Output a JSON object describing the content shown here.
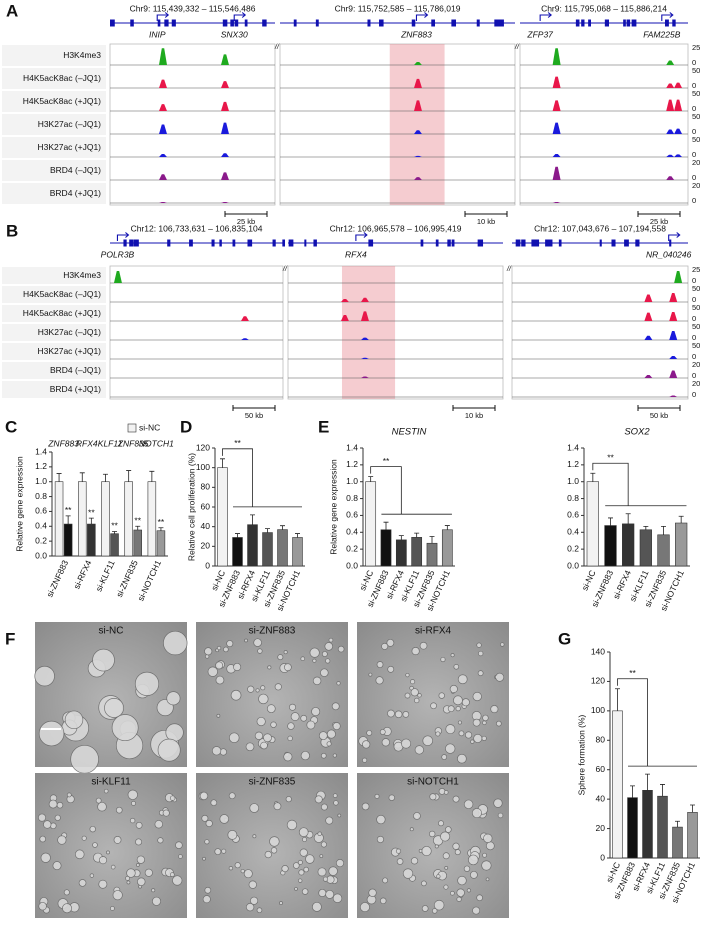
{
  "genome_panels": [
    {
      "label": "A",
      "break_mark": "//",
      "regions": [
        {
          "coord": "Chr9: 115,439,332 – 115,546,486",
          "start": 115439332,
          "end": 115546486,
          "genes": [
            {
              "name": "INIP",
              "pos": 115470000
            },
            {
              "name": "SNX30",
              "pos": 115520000
            }
          ],
          "scale_bar": "25 kb"
        },
        {
          "coord": "Chr9: 115,752,585 – 115,786,019",
          "start": 115752585,
          "end": 115786019,
          "genes": [
            {
              "name": "ZNF883",
              "pos": 115772000
            }
          ],
          "scale_bar": "10 kb"
        },
        {
          "coord": "Chr9: 115,795,068 – 115,886,214",
          "start": 115795068,
          "end": 115886214,
          "genes": [
            {
              "name": "ZFP37",
              "pos": 115806000
            },
            {
              "name": "FAM225B",
              "pos": 115872000
            }
          ],
          "scale_bar": "25 kb"
        }
      ],
      "highlight": {
        "region": 1,
        "start": 115768200,
        "end": 115776000
      },
      "tracks": [
        {
          "name": "H3K4me3",
          "scale": [
            25,
            0
          ],
          "color": "#1faa1f",
          "peaks": [
            [
              0,
              115473752,
              22
            ],
            [
              0,
              115514012,
              14
            ],
            [
              1,
              115772215,
              4
            ],
            [
              2,
              115814928,
              22
            ],
            [
              2,
              115876553,
              6
            ]
          ]
        },
        {
          "name": "H4K5acK8ac (–JQ1)",
          "scale": [
            50,
            0
          ],
          "color": "#e8174a",
          "peaks": [
            [
              0,
              115473752,
              22
            ],
            [
              0,
              115514012,
              18
            ],
            [
              1,
              115772215,
              24
            ],
            [
              2,
              115814928,
              30
            ],
            [
              2,
              115876553,
              12
            ],
            [
              2,
              115880838,
              14
            ]
          ]
        },
        {
          "name": "H4K5acK8ac (+JQ1)",
          "scale": [
            50,
            0
          ],
          "color": "#e8174a",
          "peaks": [
            [
              0,
              115473752,
              18
            ],
            [
              0,
              115514012,
              24
            ],
            [
              1,
              115772215,
              28
            ],
            [
              2,
              115814928,
              28
            ],
            [
              2,
              115876553,
              30
            ],
            [
              2,
              115880838,
              30
            ]
          ]
        },
        {
          "name": "H3K27ac (–JQ1)",
          "scale": [
            50,
            0
          ],
          "color": "#1a1adc",
          "peaks": [
            [
              0,
              115473752,
              25
            ],
            [
              0,
              115514012,
              30
            ],
            [
              1,
              115772215,
              10
            ],
            [
              2,
              115814928,
              30
            ],
            [
              2,
              115876553,
              12
            ],
            [
              2,
              115880838,
              14
            ]
          ]
        },
        {
          "name": "H3K27ac (+JQ1)",
          "scale": [
            50,
            0
          ],
          "color": "#1a1adc",
          "peaks": [
            [
              0,
              115473752,
              8
            ],
            [
              0,
              115514012,
              10
            ],
            [
              1,
              115772215,
              3
            ],
            [
              2,
              115814928,
              8
            ],
            [
              2,
              115876553,
              6
            ],
            [
              2,
              115880838,
              7
            ]
          ]
        },
        {
          "name": "BRD4 (–JQ1)",
          "scale": [
            20,
            0
          ],
          "color": "#8b1a8b",
          "peaks": [
            [
              0,
              115473752,
              6
            ],
            [
              0,
              115514012,
              8
            ],
            [
              1,
              115772215,
              3
            ],
            [
              2,
              115814928,
              14
            ],
            [
              2,
              115876553,
              4
            ]
          ]
        },
        {
          "name": "BRD4 (+JQ1)",
          "scale": [
            20,
            0
          ],
          "color": "#8b1a8b",
          "peaks": [
            [
              0,
              115473752,
              1
            ],
            [
              0,
              115514012,
              1
            ],
            [
              2,
              115814928,
              1
            ]
          ]
        }
      ]
    },
    {
      "label": "B",
      "break_mark": "//",
      "regions": [
        {
          "coord": "Chr12: 106,733,631 – 106,835,104",
          "start": 106733631,
          "end": 106835104,
          "genes": [
            {
              "name": "POLR3B",
              "pos": 106738000
            }
          ],
          "scale_bar": "50 kb"
        },
        {
          "coord": "Chr12: 106,965,578 – 106,995,419",
          "start": 106965578,
          "end": 106995419,
          "genes": [
            {
              "name": "RFX4",
              "pos": 106975000
            }
          ],
          "scale_bar": "10 kb"
        },
        {
          "coord": "Chr12: 107,043,676 – 107,194,558",
          "start": 107043676,
          "end": 107194558,
          "genes": [
            {
              "name": "NR_040246",
              "pos": 107178000
            }
          ],
          "scale_bar": "50 kb"
        }
      ],
      "highlight": {
        "region": 1,
        "start": 106973070,
        "end": 106980440
      },
      "tracks": [
        {
          "name": "H3K4me3",
          "scale": [
            25,
            0
          ],
          "color": "#1faa1f",
          "peaks": [
            [
              0,
              106738300,
              20
            ],
            [
              2,
              107186100,
              20
            ]
          ]
        },
        {
          "name": "H4K5acK8ac (–JQ1)",
          "scale": [
            50,
            0
          ],
          "color": "#e8174a",
          "peaks": [
            [
              1,
              106973480,
              10
            ],
            [
              1,
              106976260,
              14
            ],
            [
              2,
              107160600,
              25
            ],
            [
              2,
              107181900,
              30
            ]
          ]
        },
        {
          "name": "H4K5acK8ac (+JQ1)",
          "scale": [
            50,
            0
          ],
          "color": "#e8174a",
          "peaks": [
            [
              0,
              106812800,
              16
            ],
            [
              1,
              106973480,
              20
            ],
            [
              1,
              106976260,
              32
            ],
            [
              2,
              107160600,
              28
            ],
            [
              2,
              107181900,
              30
            ]
          ]
        },
        {
          "name": "H3K27ac (–JQ1)",
          "scale": [
            50,
            0
          ],
          "color": "#1a1adc",
          "peaks": [
            [
              0,
              106812800,
              6
            ],
            [
              1,
              106976260,
              8
            ],
            [
              2,
              107160600,
              14
            ],
            [
              2,
              107181900,
              30
            ]
          ]
        },
        {
          "name": "H3K27ac (+JQ1)",
          "scale": [
            50,
            0
          ],
          "color": "#1a1adc",
          "peaks": [
            [
              1,
              106976260,
              4
            ],
            [
              2,
              107181900,
              10
            ]
          ]
        },
        {
          "name": "BRD4 (–JQ1)",
          "scale": [
            20,
            0
          ],
          "color": "#8b1a8b",
          "peaks": [
            [
              1,
              106976260,
              2
            ],
            [
              2,
              107160600,
              4
            ],
            [
              2,
              107181900,
              10
            ]
          ]
        },
        {
          "name": "BRD4 (+JQ1)",
          "scale": [
            20,
            0
          ],
          "color": "#8b1a8b",
          "peaks": [
            [
              2,
              107181900,
              2
            ]
          ]
        }
      ]
    }
  ],
  "chart_data": [
    {
      "type": "bar",
      "panel": "C",
      "y_label": "Relative gene expression",
      "categories": [
        "si-ZNF883",
        "si-RFX4",
        "si-KLF11",
        "si-ZNF835",
        "si-NOTCH1"
      ],
      "group_labels": [
        "ZNF883",
        "RFX4",
        "KLF11",
        "ZNF835",
        "NOTCH1"
      ],
      "series": [
        {
          "name": "si-NC",
          "color": "#f2f2f2",
          "values": [
            1.0,
            1.0,
            1.0,
            1.0,
            1.0
          ],
          "errors": [
            0.11,
            0.12,
            0.1,
            0.15,
            0.14
          ]
        },
        {
          "colors": [
            "#111111",
            "#333333",
            "#555555",
            "#777777",
            "#999999"
          ],
          "values": [
            0.43,
            0.43,
            0.3,
            0.35,
            0.34
          ],
          "errors": [
            0.11,
            0.08,
            0.03,
            0.05,
            0.04
          ],
          "annotations": [
            "**",
            "**",
            "**",
            "**",
            "**"
          ]
        }
      ],
      "ylim": [
        0,
        1.4
      ],
      "yticks": [
        {
          "value": 0,
          "label": "0.0"
        },
        0.2,
        0.4,
        0.6,
        0.8,
        {
          "value": 1,
          "label": "1.0"
        },
        1.2,
        1.4
      ]
    },
    {
      "type": "bar",
      "panel": "D",
      "y_label": "Relative cell proliferation (%)",
      "categories": [
        "si-NC",
        "si-ZNF883",
        "si-RFX4",
        "si-KLF11",
        "si-ZNF835",
        "si-NOTCH1"
      ],
      "values": [
        100,
        29,
        42,
        34,
        37,
        29
      ],
      "errors": [
        9,
        4,
        10,
        4,
        4,
        4
      ],
      "colors": [
        "#f2f2f2",
        "#111111",
        "#333333",
        "#555555",
        "#777777",
        "#999999"
      ],
      "annotation": "**",
      "ylim": [
        0,
        120
      ],
      "yticks": [
        0,
        20,
        40,
        60,
        80,
        100,
        120
      ]
    },
    {
      "type": "bar",
      "panel": "E",
      "title": "NESTIN",
      "y_label": "Relative gene expression",
      "categories": [
        "si-NC",
        "si-ZNF883",
        "si-RFX4",
        "si-KLF11",
        "si-ZNF835",
        "si-NOTCH1"
      ],
      "values": [
        1.0,
        0.43,
        0.31,
        0.34,
        0.27,
        0.43
      ],
      "errors": [
        0.06,
        0.09,
        0.05,
        0.05,
        0.08,
        0.05
      ],
      "colors": [
        "#f2f2f2",
        "#111111",
        "#333333",
        "#555555",
        "#777777",
        "#999999"
      ],
      "annotation": "**",
      "ylim": [
        0,
        1.4
      ],
      "yticks": [
        {
          "value": 0,
          "label": "0.0"
        },
        0.2,
        0.4,
        0.6,
        0.8,
        {
          "value": 1,
          "label": "1.0"
        },
        1.2,
        1.4
      ]
    },
    {
      "type": "bar",
      "title": "SOX2",
      "categories": [
        "si-NC",
        "si-ZNF883",
        "si-RFX4",
        "si-KLF11",
        "si-ZNF835",
        "si-NOTCH1"
      ],
      "values": [
        1.0,
        0.48,
        0.5,
        0.43,
        0.37,
        0.51
      ],
      "errors": [
        0.1,
        0.09,
        0.12,
        0.04,
        0.1,
        0.08
      ],
      "colors": [
        "#f2f2f2",
        "#111111",
        "#333333",
        "#555555",
        "#777777",
        "#999999"
      ],
      "annotation": "**",
      "ylim": [
        0,
        1.4
      ],
      "yticks": [
        {
          "value": 0,
          "label": "0.0"
        },
        0.2,
        0.4,
        0.6,
        0.8,
        {
          "value": 1,
          "label": "1.0"
        },
        1.2,
        1.4
      ]
    },
    {
      "type": "bar",
      "panel": "G",
      "y_label": "Sphere formation (%)",
      "categories": [
        "si-NC",
        "si-ZNF883",
        "si-RFX4",
        "si-KLF11",
        "si-ZNF835",
        "si-NOTCH1"
      ],
      "values": [
        100,
        41,
        46,
        42,
        21,
        31
      ],
      "errors": [
        15,
        8,
        11,
        8,
        4,
        5
      ],
      "colors": [
        "#f2f2f2",
        "#111111",
        "#333333",
        "#555555",
        "#777777",
        "#999999"
      ],
      "annotation": "**",
      "ylim": [
        0,
        140
      ],
      "yticks": [
        0,
        20,
        40,
        60,
        80,
        100,
        120,
        140
      ]
    }
  ],
  "micrographs": {
    "label": "F",
    "panels": [
      "si-NC",
      "si-ZNF883",
      "si-RFX4",
      "si-KLF11",
      "si-ZNF835",
      "si-NOTCH1"
    ]
  }
}
